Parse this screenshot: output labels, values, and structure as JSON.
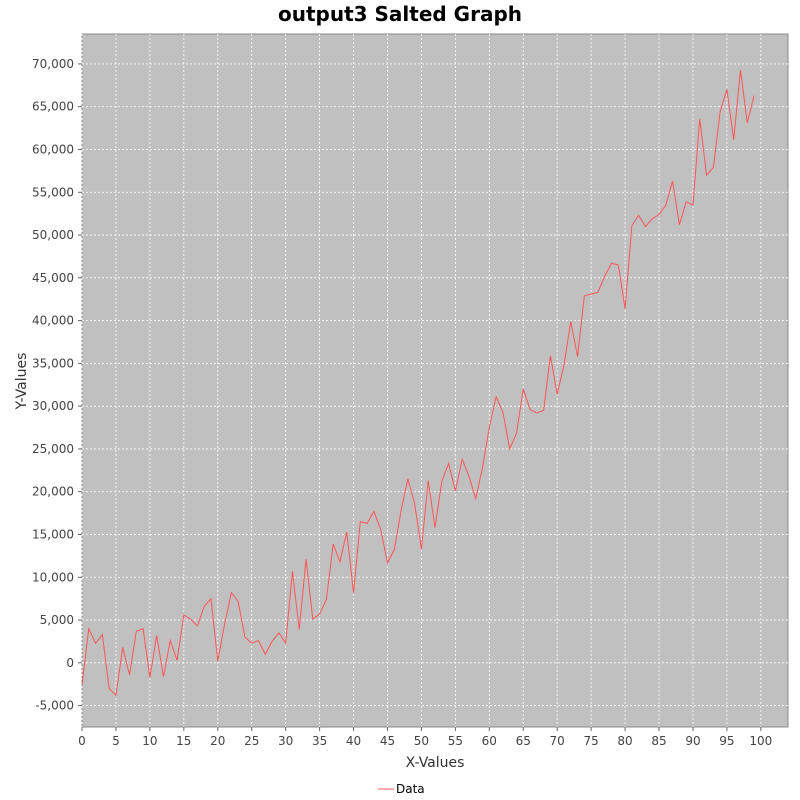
{
  "chart_data": {
    "type": "line",
    "title": "output3 Salted Graph",
    "xlabel": "X-Values",
    "ylabel": "Y-Values",
    "xlim": [
      0,
      104
    ],
    "ylim": [
      -7500,
      73500
    ],
    "x_ticks": [
      0,
      5,
      10,
      15,
      20,
      25,
      30,
      35,
      40,
      45,
      50,
      55,
      60,
      65,
      70,
      75,
      80,
      85,
      90,
      95,
      100
    ],
    "y_ticks": [
      -5000,
      0,
      5000,
      10000,
      15000,
      20000,
      25000,
      30000,
      35000,
      40000,
      45000,
      50000,
      55000,
      60000,
      65000,
      70000
    ],
    "y_tick_labels": [
      "-5,000",
      "0",
      "5,000",
      "10,000",
      "15,000",
      "20,000",
      "25,000",
      "30,000",
      "35,000",
      "40,000",
      "45,000",
      "50,000",
      "55,000",
      "60,000",
      "65,000",
      "70,000"
    ],
    "grid": true,
    "background": "#c0c0c0",
    "legend_position": "bottom",
    "series": [
      {
        "name": "Data",
        "color": "#ff5555",
        "x": [
          0,
          1,
          2,
          3,
          4,
          5,
          6,
          7,
          8,
          9,
          10,
          11,
          12,
          13,
          14,
          15,
          16,
          17,
          18,
          19,
          20,
          21,
          22,
          23,
          24,
          25,
          26,
          27,
          28,
          29,
          30,
          31,
          32,
          33,
          34,
          35,
          36,
          37,
          38,
          39,
          40,
          41,
          42,
          43,
          44,
          45,
          46,
          47,
          48,
          49,
          50,
          51,
          52,
          53,
          54,
          55,
          56,
          57,
          58,
          59,
          60,
          61,
          62,
          63,
          64,
          65,
          66,
          67,
          68,
          69,
          70,
          71,
          72,
          73,
          74,
          75,
          76,
          77,
          78,
          79,
          80,
          81,
          82,
          83,
          84,
          85,
          86,
          87,
          88,
          89,
          90,
          91,
          92,
          93,
          94,
          95,
          96,
          97,
          98,
          99
        ],
        "values": [
          -2500,
          4000,
          2300,
          3300,
          -3000,
          -3800,
          1800,
          -1400,
          3700,
          4000,
          -1700,
          3200,
          -1600,
          2600,
          300,
          5600,
          5100,
          4300,
          6600,
          7500,
          200,
          4500,
          8200,
          7200,
          3000,
          2300,
          2600,
          1000,
          2500,
          3500,
          2300,
          10700,
          3900,
          12100,
          5100,
          5700,
          7400,
          13900,
          11800,
          15300,
          8200,
          16500,
          16300,
          17700,
          15600,
          11700,
          13200,
          17800,
          21500,
          18600,
          13300,
          21300,
          15800,
          21200,
          23300,
          20100,
          23800,
          21800,
          19200,
          22800,
          27500,
          31100,
          29300,
          25000,
          26800,
          32000,
          29600,
          29200,
          29500,
          35900,
          31400,
          34800,
          39900,
          35800,
          42900,
          43100,
          43300,
          45200,
          46700,
          46500,
          41400,
          51100,
          52300,
          51000,
          51900,
          52400,
          53500,
          56300,
          51200,
          53900,
          53500,
          63600,
          57000,
          57900,
          64400,
          67000,
          61100,
          69300,
          63100,
          66300
        ]
      }
    ]
  }
}
